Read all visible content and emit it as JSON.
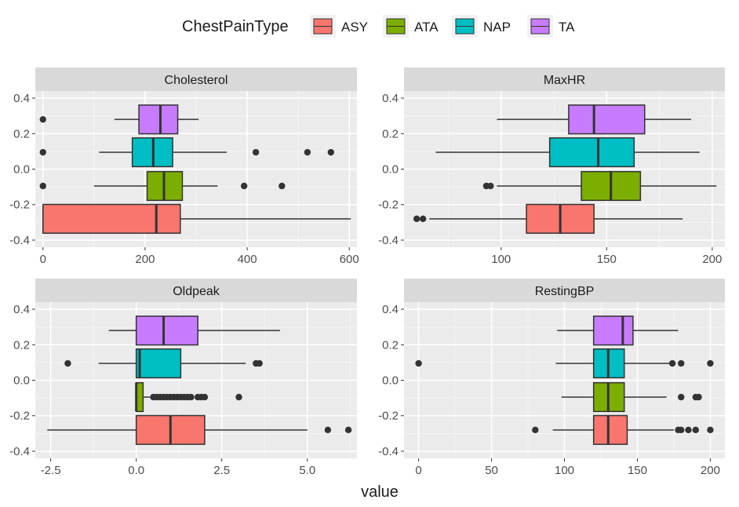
{
  "legend": {
    "title": "ChestPainType",
    "items": [
      {
        "label": "ASY",
        "color": "#F8766D"
      },
      {
        "label": "ATA",
        "color": "#7CAE00"
      },
      {
        "label": "NAP",
        "color": "#00BFC4"
      },
      {
        "label": "TA",
        "color": "#C77CFF"
      }
    ]
  },
  "chart_data": {
    "type": "boxplot",
    "xlabel": "value",
    "ylabel": "",
    "legend_position": "top",
    "grid": true,
    "y_ticks": [
      "-0.4",
      "-0.2",
      "0.0",
      "0.2",
      "0.4"
    ],
    "group_offsets": {
      "ASY": -0.28,
      "ATA": -0.095,
      "NAP": 0.095,
      "TA": 0.28
    },
    "panels": [
      {
        "title": "Cholesterol",
        "xlim": [
          -15,
          615
        ],
        "x_ticks": [
          0,
          200,
          400,
          600
        ],
        "x_tick_labels": [
          "0",
          "200",
          "400",
          "600"
        ],
        "boxes": {
          "ASY": {
            "lower": 0,
            "q1": 0,
            "median": 222,
            "q3": 269,
            "upper": 603,
            "outliers": []
          },
          "ATA": {
            "lower": 100,
            "q1": 204,
            "median": 237,
            "q3": 273,
            "upper": 342,
            "outliers": [
              0,
              394,
              468
            ]
          },
          "NAP": {
            "lower": 110,
            "q1": 175,
            "median": 216,
            "q3": 254,
            "upper": 360,
            "outliers": [
              0,
              417,
              518,
              564
            ]
          },
          "TA": {
            "lower": 140,
            "q1": 188,
            "median": 230,
            "q3": 264,
            "upper": 305,
            "outliers": [
              0
            ]
          }
        }
      },
      {
        "title": "MaxHR",
        "xlim": [
          54,
          206
        ],
        "x_ticks": [
          100,
          150,
          200
        ],
        "x_tick_labels": [
          "100",
          "150",
          "200"
        ],
        "boxes": {
          "ASY": {
            "lower": 66,
            "q1": 112,
            "median": 128,
            "q3": 144,
            "upper": 186,
            "outliers": [
              60,
              63
            ]
          },
          "ATA": {
            "lower": 98,
            "q1": 138,
            "median": 152,
            "q3": 166,
            "upper": 202,
            "outliers": [
              93,
              95
            ]
          },
          "NAP": {
            "lower": 69,
            "q1": 123,
            "median": 146,
            "q3": 163,
            "upper": 194,
            "outliers": []
          },
          "TA": {
            "lower": 98,
            "q1": 132,
            "median": 144,
            "q3": 168,
            "upper": 190,
            "outliers": []
          }
        }
      },
      {
        "title": "Oldpeak",
        "xlim": [
          -2.95,
          6.45
        ],
        "x_ticks": [
          -2.5,
          0,
          2.5,
          5
        ],
        "x_tick_labels": [
          "-2.5",
          "0.0",
          "2.5",
          "5.0"
        ],
        "boxes": {
          "ASY": {
            "lower": -2.6,
            "q1": 0,
            "median": 1.0,
            "q3": 2.0,
            "upper": 5.0,
            "outliers": [
              5.6,
              6.2
            ]
          },
          "ATA": {
            "lower": 0,
            "q1": 0,
            "median": 0,
            "q3": 0.2,
            "upper": 0.4,
            "outliers": [
              0.5,
              0.6,
              0.7,
              0.8,
              0.9,
              1.0,
              1.1,
              1.2,
              1.3,
              1.4,
              1.5,
              1.6,
              1.8,
              1.9,
              2.0,
              3.0
            ]
          },
          "NAP": {
            "lower": -1.1,
            "q1": 0,
            "median": 0.1,
            "q3": 1.3,
            "upper": 3.2,
            "outliers": [
              -2.0,
              3.5,
              3.6
            ]
          },
          "TA": {
            "lower": -0.8,
            "q1": 0,
            "median": 0.8,
            "q3": 1.8,
            "upper": 4.2,
            "outliers": []
          }
        }
      },
      {
        "title": "RestingBP",
        "xlim": [
          -10,
          210
        ],
        "x_ticks": [
          0,
          50,
          100,
          150,
          200
        ],
        "x_tick_labels": [
          "0",
          "50",
          "100",
          "150",
          "200"
        ],
        "boxes": {
          "ASY": {
            "lower": 92,
            "q1": 120,
            "median": 130,
            "q3": 143,
            "upper": 175,
            "outliers": [
              80,
              178,
              180,
              185,
              190,
              200
            ]
          },
          "ATA": {
            "lower": 98,
            "q1": 120,
            "median": 130,
            "q3": 141,
            "upper": 170,
            "outliers": [
              180,
              190,
              192
            ]
          },
          "NAP": {
            "lower": 94,
            "q1": 120,
            "median": 130,
            "q3": 141,
            "upper": 172,
            "outliers": [
              0,
              174,
              180,
              200
            ]
          },
          "TA": {
            "lower": 95,
            "q1": 120,
            "median": 140,
            "q3": 147,
            "upper": 178,
            "outliers": []
          }
        }
      }
    ]
  }
}
